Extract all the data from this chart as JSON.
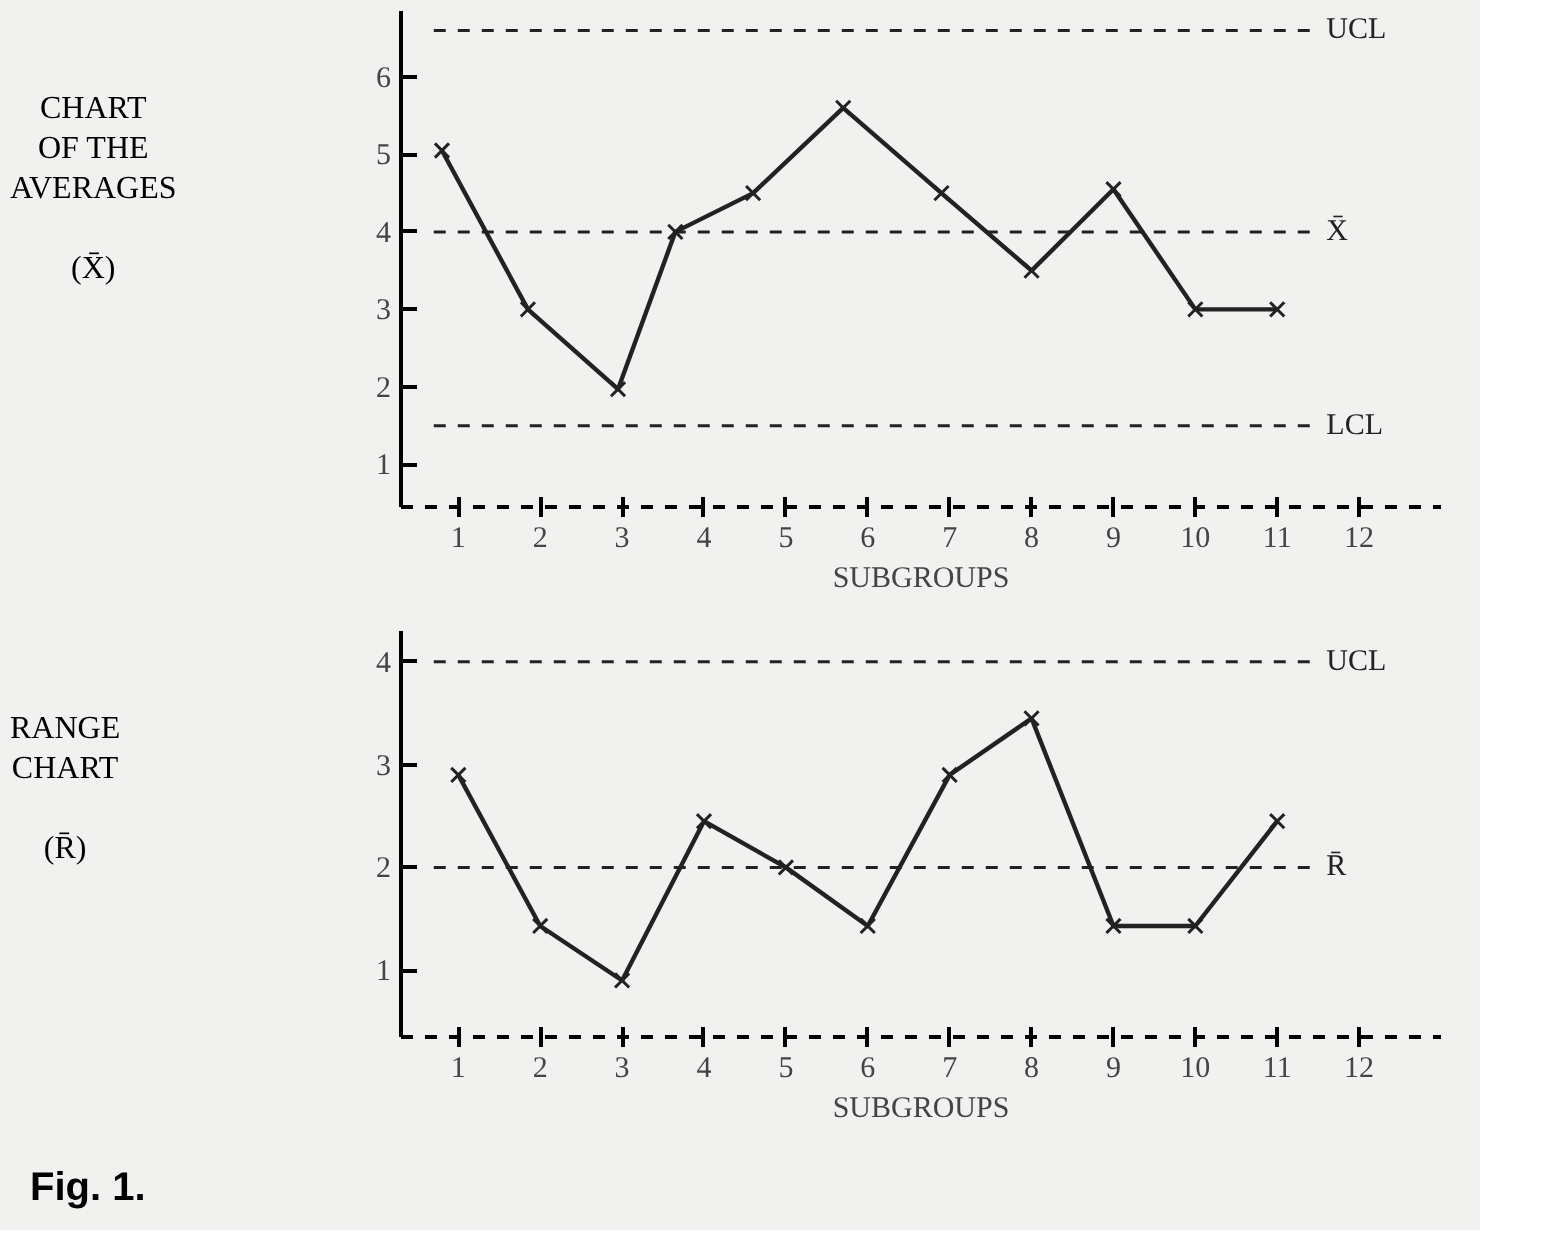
{
  "chart_data": [
    {
      "type": "line",
      "ylabel": "CHART\nOF THE\nAVERAGES\n\n(X̄)",
      "xlabel": "SUBGROUPS",
      "marker": "cross",
      "line_style": "solid",
      "grid": false,
      "series": [
        {
          "color": "#222222",
          "x": [
            0.8,
            1.85,
            2.95,
            3.65,
            4.6,
            5.7,
            6.9,
            8,
            9,
            10,
            11
          ],
          "values": [
            5.05,
            3.0,
            1.97,
            4.0,
            4.5,
            5.6,
            4.5,
            3.5,
            4.55,
            3.0,
            3.0
          ]
        }
      ],
      "xlim": [
        0.3,
        13
      ],
      "xticks": [
        1,
        2,
        3,
        4,
        5,
        6,
        7,
        8,
        9,
        10,
        11,
        12
      ],
      "ylim": [
        0.45,
        6.85
      ],
      "yticks": [
        1,
        2,
        3,
        4,
        5,
        6
      ],
      "ref_lines": [
        {
          "axis": "y",
          "value": 6.6,
          "label": "UCL",
          "line_style": "dashed"
        },
        {
          "axis": "y",
          "value": 4.0,
          "label": "X̄",
          "line_style": "dashed"
        },
        {
          "axis": "y",
          "value": 1.5,
          "label": "LCL",
          "line_style": "dashed"
        }
      ]
    },
    {
      "type": "line",
      "ylabel": "RANGE\nCHART\n\n(R̄)",
      "xlabel": "SUBGROUPS",
      "marker": "cross",
      "line_style": "solid",
      "grid": false,
      "series": [
        {
          "color": "#222222",
          "x": [
            1,
            2,
            3,
            4,
            5,
            6,
            7,
            8,
            9,
            10,
            11
          ],
          "values": [
            2.9,
            1.43,
            0.9,
            2.45,
            2.0,
            1.43,
            2.9,
            3.45,
            1.43,
            1.43,
            2.45
          ]
        }
      ],
      "xlim": [
        0.3,
        13
      ],
      "xticks": [
        1,
        2,
        3,
        4,
        5,
        6,
        7,
        8,
        9,
        10,
        11,
        12
      ],
      "ylim": [
        0.35,
        4.3
      ],
      "yticks": [
        1,
        2,
        3,
        4
      ],
      "ref_lines": [
        {
          "axis": "y",
          "value": 4.0,
          "label": "UCL",
          "line_style": "dashed"
        },
        {
          "axis": "y",
          "value": 2.0,
          "label": "R̄",
          "line_style": "dashed"
        }
      ],
      "annotations": [
        "Fig. 1."
      ]
    }
  ]
}
